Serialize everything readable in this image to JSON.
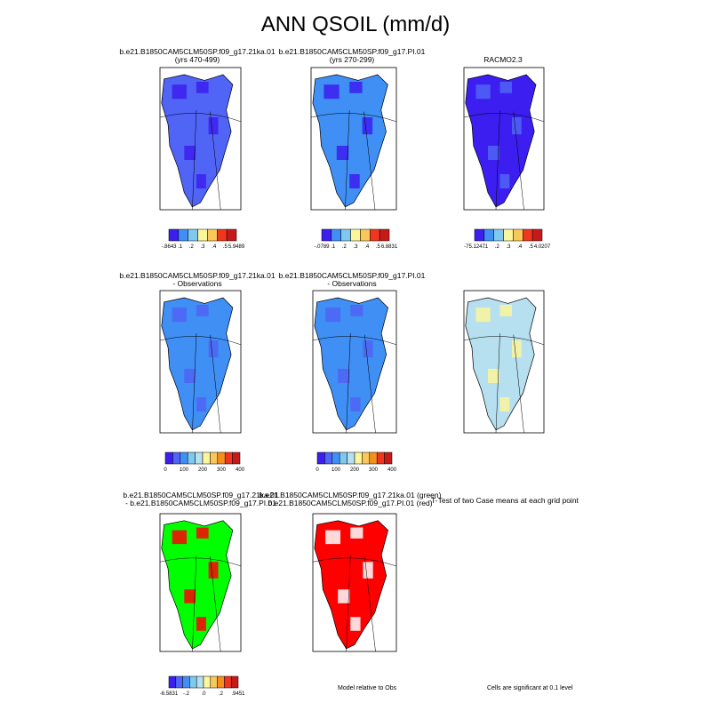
{
  "title": "ANN QSOIL (mm/d)",
  "colors": {
    "palette": [
      "#3c1ef0",
      "#5064f5",
      "#3f8ff5",
      "#7fc8ee",
      "#b6e0ef",
      "#fbf59b",
      "#f8c85a",
      "#f5901f",
      "#f0361f",
      "#c61a1a"
    ],
    "green": "#00ff00",
    "red": "#ff0000",
    "white": "#ffffff"
  },
  "panels": [
    {
      "id": "p1",
      "title1": "b.e21.B1850CAM5CLM50SP.f09_g17.21ka.01",
      "title2": "(yrs 470-499)",
      "fill": "#5064f5",
      "accent": "#3c1ef0",
      "colorbar": {
        "labels": [
          "-.8643",
          ".1",
          ".2",
          ".3",
          ".4",
          ".5",
          "5.9489"
        ]
      }
    },
    {
      "id": "p2",
      "title1": "b.e21.B1850CAM5CLM50SP.f09_g17.PI.01",
      "title2": "(yrs 270-299)",
      "fill": "#3f8ff5",
      "accent": "#3c1ef0",
      "colorbar": {
        "labels": [
          "-.0789",
          ".1",
          ".2",
          ".3",
          ".4",
          ".5",
          "6.8831"
        ]
      }
    },
    {
      "id": "p3",
      "title1": "RACMO2.3",
      "title2": "",
      "fill": "#3c1ef0",
      "accent": "#5064f5",
      "colorbar": {
        "labels": [
          "-75.1247",
          ".1",
          ".2",
          ".3",
          ".4",
          ".5",
          "4.0207"
        ]
      }
    },
    {
      "id": "p4",
      "title1": "b.e21.B1850CAM5CLM50SP.f09_g17.21ka.01",
      "title2": "- Observations",
      "fill": "#3f8ff5",
      "accent": "#5064f5",
      "colorbar": {
        "labels": [
          "0",
          "100",
          "200",
          "300",
          "400"
        ]
      }
    },
    {
      "id": "p5",
      "title1": "b.e21.B1850CAM5CLM50SP.f09_g17.PI.01",
      "title2": "- Observations",
      "fill": "#3f8ff5",
      "accent": "#5064f5",
      "colorbar": {
        "labels": [
          "0",
          "100",
          "200",
          "300",
          "400"
        ]
      }
    },
    {
      "id": "p6",
      "title1": "b.e21.B1850CAM5CLM50SP.f09_g17.21ka.01",
      "title2": "- b.e21.B1850CAM5CLM50SP.f09_g17.PI.01",
      "fill": "#b6e0ef",
      "accent": "#fbf59b",
      "colorbar": {
        "labels": [
          "-6.5831",
          "-.2",
          ".0",
          ".2",
          ".9451"
        ]
      }
    },
    {
      "id": "p7",
      "title1": "b.e21.B1850CAM5CLM50SP.f09_g17.21ka.01 (green)",
      "title2": "b.e21.B1850CAM5CLM50SP.f09_g17.PI.01 (red)",
      "fill": "#00ff00",
      "accent": "#ff0000",
      "note": "Model relative to Obs"
    },
    {
      "id": "p8",
      "title1": "T-Test of two Case means at each grid point",
      "title2": "",
      "fill": "#ff0000",
      "accent": "#ffffff",
      "note": "Cells are significant at 0.1 level"
    }
  ]
}
